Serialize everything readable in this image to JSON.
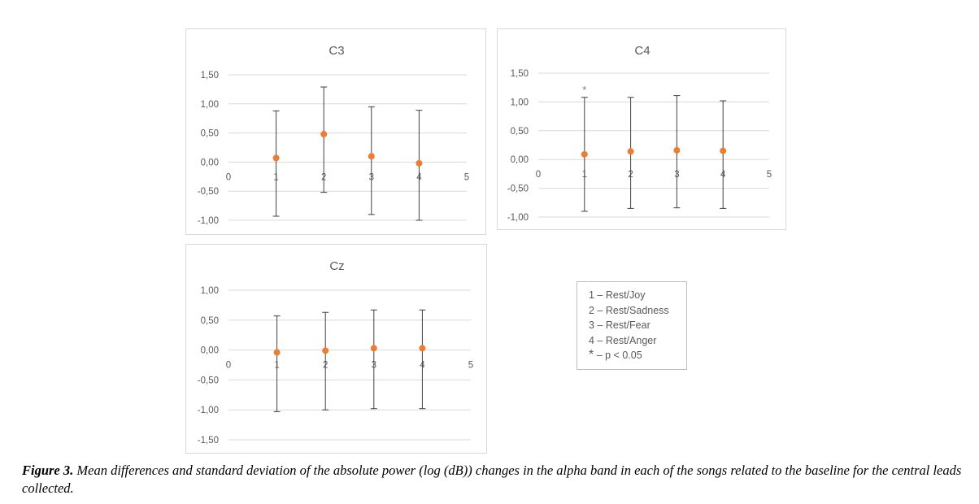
{
  "chart_data": [
    {
      "type": "scatter",
      "title": "C3",
      "x": [
        1,
        2,
        3,
        4
      ],
      "y": [
        0.07,
        0.48,
        0.1,
        -0.02
      ],
      "error_upper": [
        0.88,
        1.29,
        0.95,
        0.89
      ],
      "error_lower": [
        -0.93,
        -0.52,
        -0.9,
        -1.0
      ],
      "xlim": [
        0,
        5
      ],
      "ylim": [
        -1.0,
        1.5
      ],
      "x_ticks": [
        "0",
        "1",
        "2",
        "3",
        "4",
        "5"
      ],
      "y_ticks": [
        "1,50",
        "1,00",
        "0,50",
        "0,00",
        "-0,50",
        "-1,00"
      ],
      "y_tick_values": [
        1.5,
        1.0,
        0.5,
        0.0,
        -0.5,
        -1.0
      ],
      "annotations": [],
      "grid": true
    },
    {
      "type": "scatter",
      "title": "C4",
      "x": [
        1,
        2,
        3,
        4
      ],
      "y": [
        0.09,
        0.14,
        0.16,
        0.15
      ],
      "error_upper": [
        1.08,
        1.08,
        1.11,
        1.02
      ],
      "error_lower": [
        -0.9,
        -0.85,
        -0.84,
        -0.85
      ],
      "xlim": [
        0,
        5
      ],
      "ylim": [
        -1.0,
        1.5
      ],
      "x_ticks": [
        "0",
        "1",
        "2",
        "3",
        "4",
        "5"
      ],
      "y_ticks": [
        "1,50",
        "1,00",
        "0,50",
        "0,00",
        "-0,50",
        "-1,00"
      ],
      "y_tick_values": [
        1.5,
        1.0,
        0.5,
        0.0,
        -0.5,
        -1.0
      ],
      "annotations": [
        {
          "x": 1,
          "y": 1.23,
          "text": "*"
        }
      ],
      "grid": true
    },
    {
      "type": "scatter",
      "title": "Cz",
      "x": [
        1,
        2,
        3,
        4
      ],
      "y": [
        -0.04,
        -0.01,
        0.03,
        0.03
      ],
      "error_upper": [
        0.57,
        0.63,
        0.67,
        0.67
      ],
      "error_lower": [
        -1.03,
        -1.0,
        -0.98,
        -0.98
      ],
      "xlim": [
        0,
        5
      ],
      "ylim": [
        -1.5,
        1.0
      ],
      "x_ticks": [
        "0",
        "1",
        "2",
        "3",
        "4",
        "5"
      ],
      "y_ticks": [
        "1,00",
        "0,50",
        "0,00",
        "-0,50",
        "-1,00",
        "-1,50"
      ],
      "y_tick_values": [
        1.0,
        0.5,
        0.0,
        -0.5,
        -1.0,
        -1.5
      ],
      "annotations": [],
      "grid": true
    }
  ],
  "legend": {
    "items": [
      "1 – Rest/Joy",
      "2 – Rest/Sadness",
      "3 – Rest/Fear",
      "4 – Rest/Anger"
    ],
    "significance_symbol": "*",
    "significance_text": " – p < 0.05"
  },
  "caption": {
    "label": "Figure 3.",
    "text": " Mean differences and standard deviation of the absolute power (log (dB)) changes in the alpha band in each of the songs related to the baseline for the central leads collected."
  },
  "colors": {
    "marker": "#ED7D31",
    "errorbar": "#404040",
    "grid": "#d9d9d9",
    "text": "#595959"
  }
}
